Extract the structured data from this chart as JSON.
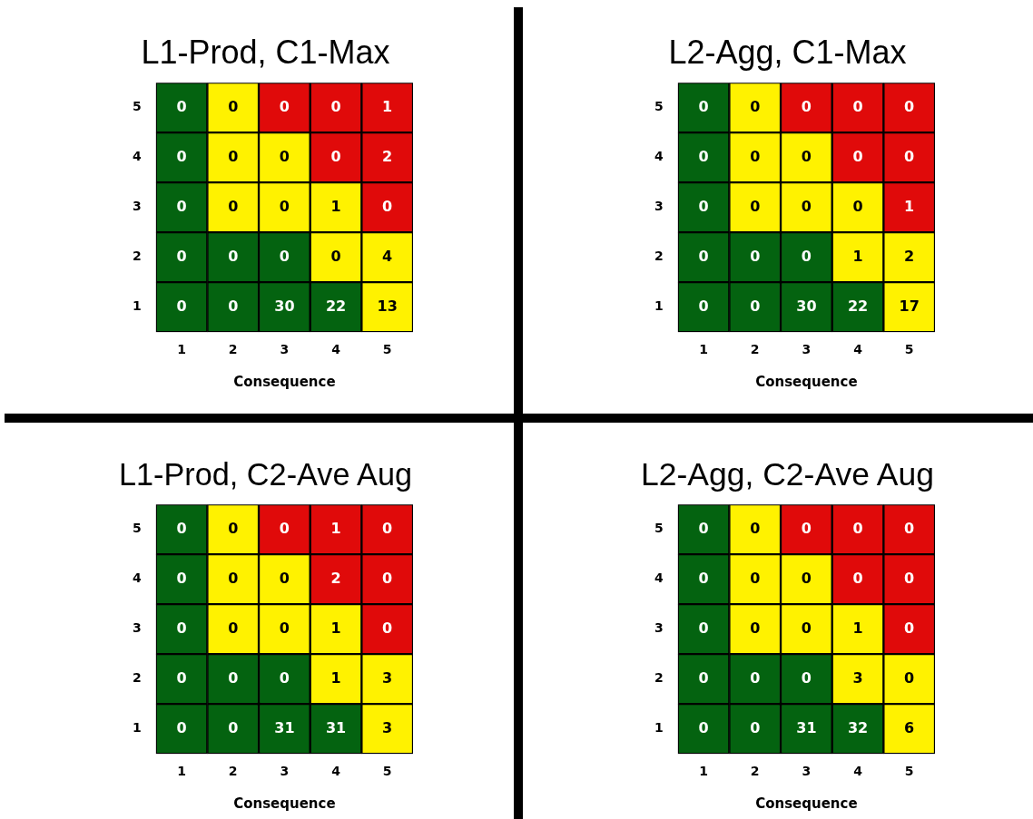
{
  "chart_data": [
    {
      "type": "heatmap",
      "data_labels": true,
      "title": "L1-Prod, C1-Max",
      "xlabel": "Consequence",
      "categories": [
        "1",
        "2",
        "3",
        "4",
        "5"
      ],
      "y_categories": [
        "5",
        "4",
        "3",
        "2",
        "1"
      ],
      "cells": [
        [
          0,
          0,
          0,
          0,
          1
        ],
        [
          0,
          0,
          0,
          0,
          2
        ],
        [
          0,
          0,
          0,
          1,
          0
        ],
        [
          0,
          0,
          0,
          0,
          4
        ],
        [
          0,
          0,
          30,
          22,
          13
        ]
      ],
      "colors": [
        [
          "#046310",
          "#fff200",
          "#e00a0a",
          "#e00a0a",
          "#e00a0a"
        ],
        [
          "#046310",
          "#fff200",
          "#fff200",
          "#e00a0a",
          "#e00a0a"
        ],
        [
          "#046310",
          "#fff200",
          "#fff200",
          "#fff200",
          "#e00a0a"
        ],
        [
          "#046310",
          "#046310",
          "#046310",
          "#fff200",
          "#fff200"
        ],
        [
          "#046310",
          "#046310",
          "#046310",
          "#046310",
          "#fff200"
        ]
      ]
    },
    {
      "type": "heatmap",
      "data_labels": true,
      "title": "L2-Agg, C1-Max",
      "xlabel": "Consequence",
      "categories": [
        "1",
        "2",
        "3",
        "4",
        "5"
      ],
      "y_categories": [
        "5",
        "4",
        "3",
        "2",
        "1"
      ],
      "cells": [
        [
          0,
          0,
          0,
          0,
          0
        ],
        [
          0,
          0,
          0,
          0,
          0
        ],
        [
          0,
          0,
          0,
          0,
          1
        ],
        [
          0,
          0,
          0,
          1,
          2
        ],
        [
          0,
          0,
          30,
          22,
          17
        ]
      ],
      "colors": [
        [
          "#046310",
          "#fff200",
          "#e00a0a",
          "#e00a0a",
          "#e00a0a"
        ],
        [
          "#046310",
          "#fff200",
          "#fff200",
          "#e00a0a",
          "#e00a0a"
        ],
        [
          "#046310",
          "#fff200",
          "#fff200",
          "#fff200",
          "#e00a0a"
        ],
        [
          "#046310",
          "#046310",
          "#046310",
          "#fff200",
          "#fff200"
        ],
        [
          "#046310",
          "#046310",
          "#046310",
          "#046310",
          "#fff200"
        ]
      ]
    },
    {
      "type": "heatmap",
      "data_labels": true,
      "title": "L1-Prod, C2-Ave Aug",
      "xlabel": "Consequence",
      "categories": [
        "1",
        "2",
        "3",
        "4",
        "5"
      ],
      "y_categories": [
        "5",
        "4",
        "3",
        "2",
        "1"
      ],
      "cells": [
        [
          0,
          0,
          0,
          1,
          0
        ],
        [
          0,
          0,
          0,
          2,
          0
        ],
        [
          0,
          0,
          0,
          1,
          0
        ],
        [
          0,
          0,
          0,
          1,
          3
        ],
        [
          0,
          0,
          31,
          31,
          3
        ]
      ],
      "colors": [
        [
          "#046310",
          "#fff200",
          "#e00a0a",
          "#e00a0a",
          "#e00a0a"
        ],
        [
          "#046310",
          "#fff200",
          "#fff200",
          "#e00a0a",
          "#e00a0a"
        ],
        [
          "#046310",
          "#fff200",
          "#fff200",
          "#fff200",
          "#e00a0a"
        ],
        [
          "#046310",
          "#046310",
          "#046310",
          "#fff200",
          "#fff200"
        ],
        [
          "#046310",
          "#046310",
          "#046310",
          "#046310",
          "#fff200"
        ]
      ]
    },
    {
      "type": "heatmap",
      "data_labels": true,
      "title": "L2-Agg, C2-Ave Aug",
      "xlabel": "Consequence",
      "categories": [
        "1",
        "2",
        "3",
        "4",
        "5"
      ],
      "y_categories": [
        "5",
        "4",
        "3",
        "2",
        "1"
      ],
      "cells": [
        [
          0,
          0,
          0,
          0,
          0
        ],
        [
          0,
          0,
          0,
          0,
          0
        ],
        [
          0,
          0,
          0,
          1,
          0
        ],
        [
          0,
          0,
          0,
          3,
          0
        ],
        [
          0,
          0,
          31,
          32,
          6
        ]
      ],
      "colors": [
        [
          "#046310",
          "#fff200",
          "#e00a0a",
          "#e00a0a",
          "#e00a0a"
        ],
        [
          "#046310",
          "#fff200",
          "#fff200",
          "#e00a0a",
          "#e00a0a"
        ],
        [
          "#046310",
          "#fff200",
          "#fff200",
          "#fff200",
          "#e00a0a"
        ],
        [
          "#046310",
          "#046310",
          "#046310",
          "#fff200",
          "#fff200"
        ],
        [
          "#046310",
          "#046310",
          "#046310",
          "#046310",
          "#fff200"
        ]
      ]
    }
  ]
}
